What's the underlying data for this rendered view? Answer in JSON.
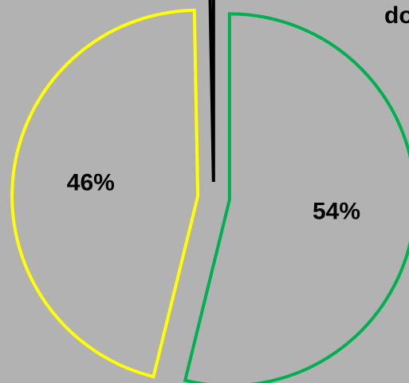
{
  "chart_data": {
    "type": "pie",
    "title": "do",
    "slices": [
      {
        "label": "54%",
        "value": 54,
        "color": "#00b050"
      },
      {
        "label": "46%",
        "value": 46,
        "color": "#ffff00"
      },
      {
        "label": "",
        "value": 0.3,
        "color": "#000000"
      }
    ],
    "background": "#b2b2b2",
    "legend": "none",
    "grid": false
  }
}
